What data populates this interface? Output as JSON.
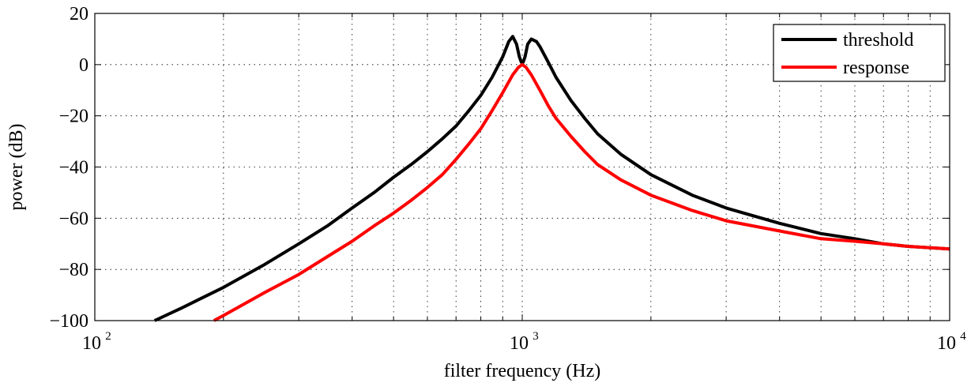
{
  "chart_data": {
    "type": "line",
    "title": "",
    "xlabel": "filter frequency (Hz)",
    "ylabel": "power (dB)",
    "x_scale": "log",
    "xlim": [
      100,
      10000
    ],
    "ylim": [
      -100,
      20
    ],
    "grid": true,
    "legend_position": "top-right",
    "x_ticks": [
      {
        "value": 100,
        "base": "10",
        "exp": "2"
      },
      {
        "value": 1000,
        "base": "10",
        "exp": "3"
      },
      {
        "value": 10000,
        "base": "10",
        "exp": "4"
      }
    ],
    "y_ticks": [
      {
        "value": 20,
        "label": "20"
      },
      {
        "value": 0,
        "label": "0"
      },
      {
        "value": -20,
        "label": "−20"
      },
      {
        "value": -40,
        "label": "−40"
      },
      {
        "value": -60,
        "label": "−60"
      },
      {
        "value": -80,
        "label": "−80"
      },
      {
        "value": -100,
        "label": "−100"
      }
    ],
    "series": [
      {
        "name": "threshold",
        "color": "#000000",
        "points": [
          [
            138,
            -100
          ],
          [
            160,
            -95
          ],
          [
            200,
            -87
          ],
          [
            250,
            -78
          ],
          [
            300,
            -70
          ],
          [
            350,
            -63
          ],
          [
            400,
            -56
          ],
          [
            450,
            -50
          ],
          [
            500,
            -44
          ],
          [
            550,
            -39
          ],
          [
            600,
            -34
          ],
          [
            650,
            -29
          ],
          [
            700,
            -24
          ],
          [
            750,
            -18
          ],
          [
            800,
            -12
          ],
          [
            850,
            -5
          ],
          [
            900,
            3
          ],
          [
            930,
            9
          ],
          [
            950,
            11
          ],
          [
            970,
            8
          ],
          [
            985,
            3
          ],
          [
            995,
            1
          ],
          [
            1000,
            0.5
          ],
          [
            1005,
            1
          ],
          [
            1015,
            3
          ],
          [
            1030,
            8
          ],
          [
            1050,
            10
          ],
          [
            1080,
            9
          ],
          [
            1100,
            7
          ],
          [
            1150,
            1
          ],
          [
            1200,
            -5
          ],
          [
            1300,
            -14
          ],
          [
            1400,
            -21
          ],
          [
            1500,
            -27
          ],
          [
            1700,
            -35
          ],
          [
            2000,
            -43
          ],
          [
            2500,
            -51
          ],
          [
            3000,
            -56
          ],
          [
            4000,
            -62
          ],
          [
            5000,
            -66
          ],
          [
            6000,
            -68
          ],
          [
            7000,
            -70
          ],
          [
            8000,
            -71
          ],
          [
            10000,
            -72
          ]
        ]
      },
      {
        "name": "response",
        "color": "#ff0000",
        "points": [
          [
            190,
            -100
          ],
          [
            200,
            -98
          ],
          [
            250,
            -89
          ],
          [
            300,
            -82
          ],
          [
            350,
            -75
          ],
          [
            400,
            -69
          ],
          [
            450,
            -63
          ],
          [
            500,
            -58
          ],
          [
            550,
            -53
          ],
          [
            600,
            -48
          ],
          [
            650,
            -43
          ],
          [
            700,
            -37
          ],
          [
            750,
            -31
          ],
          [
            800,
            -25
          ],
          [
            850,
            -18
          ],
          [
            900,
            -11
          ],
          [
            950,
            -4
          ],
          [
            980,
            -1
          ],
          [
            1000,
            0
          ],
          [
            1020,
            -1
          ],
          [
            1050,
            -4
          ],
          [
            1100,
            -10
          ],
          [
            1150,
            -16
          ],
          [
            1200,
            -21
          ],
          [
            1300,
            -28
          ],
          [
            1400,
            -34
          ],
          [
            1500,
            -39
          ],
          [
            1700,
            -45
          ],
          [
            2000,
            -51
          ],
          [
            2500,
            -57
          ],
          [
            3000,
            -61
          ],
          [
            4000,
            -65
          ],
          [
            5000,
            -68
          ],
          [
            6000,
            -69
          ],
          [
            7000,
            -70
          ],
          [
            8000,
            -71
          ],
          [
            10000,
            -72
          ]
        ]
      }
    ]
  }
}
